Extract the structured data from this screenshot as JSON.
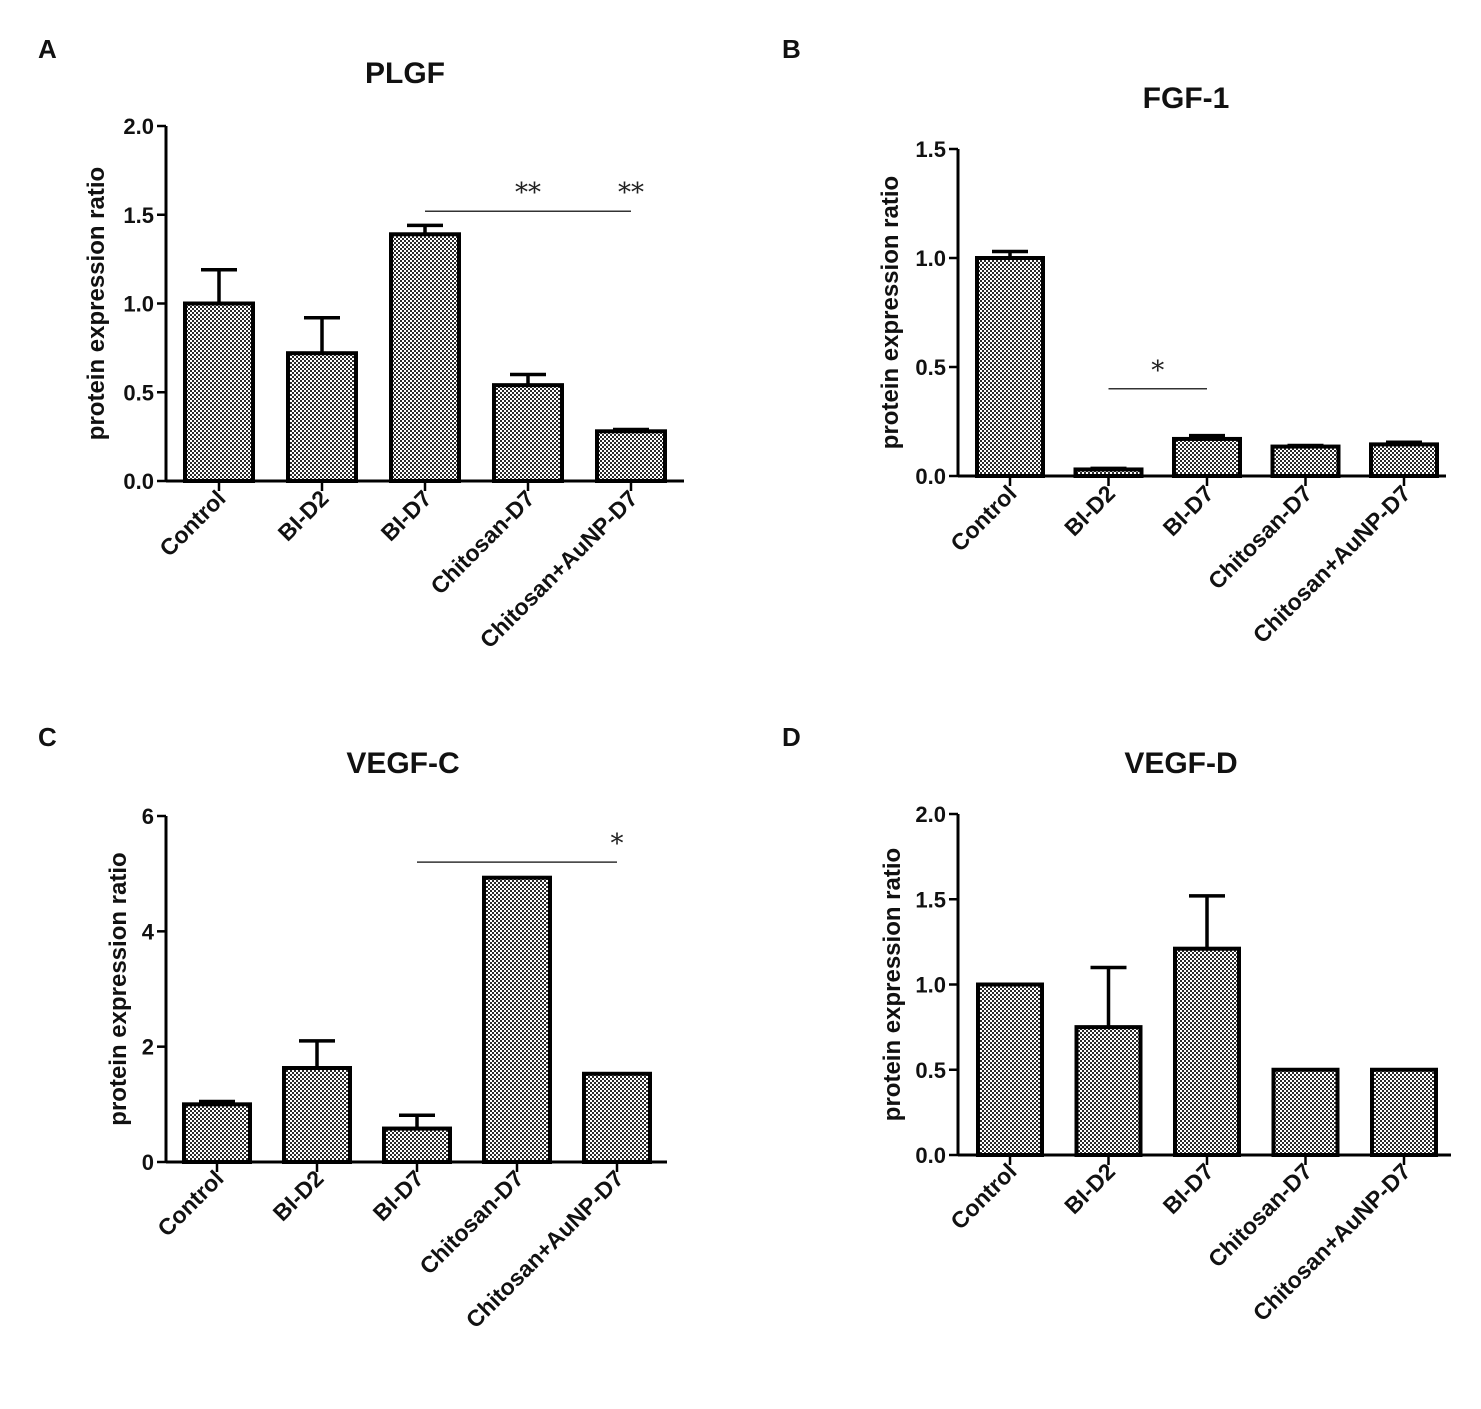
{
  "figure": {
    "panels": [
      "A",
      "B",
      "C",
      "D"
    ]
  },
  "chart_data": [
    {
      "panel": "A",
      "type": "bar",
      "title": "PLGF",
      "xlabel": "",
      "ylabel": "protein expression ratio",
      "ylim": [
        0,
        2.0
      ],
      "yticks": [
        "0.0",
        "0.5",
        "1.0",
        "1.5",
        "2.0"
      ],
      "categories": [
        "Control",
        "BI-D2",
        "BI-D7",
        "Chitosan-D7",
        "Chitosan+AuNP-D7"
      ],
      "values": [
        1.0,
        0.72,
        1.39,
        0.54,
        0.28
      ],
      "errors": [
        0.19,
        0.2,
        0.05,
        0.06,
        0.01
      ],
      "significance": [
        {
          "label": "**",
          "from": 2,
          "to": 4,
          "line_y": 1.52,
          "label_at": 3
        },
        {
          "label": "**",
          "from": 2,
          "to": 4,
          "line_y": 1.52,
          "label_at": 4
        }
      ]
    },
    {
      "panel": "B",
      "type": "bar",
      "title": "FGF-1",
      "xlabel": "",
      "ylabel": "protein expression ratio",
      "ylim": [
        0,
        1.5
      ],
      "yticks": [
        "0.0",
        "0.5",
        "1.0",
        "1.5"
      ],
      "categories": [
        "Control",
        "BI-D2",
        "BI-D7",
        "Chitosan-D7",
        "Chitosan+AuNP-D7"
      ],
      "values": [
        1.0,
        0.03,
        0.17,
        0.135,
        0.145
      ],
      "errors": [
        0.03,
        0.005,
        0.015,
        0.005,
        0.01
      ],
      "significance": [
        {
          "label": "*",
          "from": 1,
          "to": 2,
          "line_y": 0.4,
          "label_at": 1.5
        }
      ]
    },
    {
      "panel": "C",
      "type": "bar",
      "title": "VEGF-C",
      "xlabel": "",
      "ylabel": "protein expression ratio",
      "ylim": [
        0,
        6
      ],
      "yticks": [
        "0",
        "2",
        "4",
        "6"
      ],
      "categories": [
        "Control",
        "BI-D2",
        "BI-D7",
        "Chitosan-D7",
        "Chitosan+AuNP-D7"
      ],
      "values": [
        1.0,
        1.63,
        0.58,
        4.93,
        1.53
      ],
      "errors": [
        0.05,
        0.47,
        0.23,
        0,
        0
      ],
      "significance": [
        {
          "label": "*",
          "from": 2,
          "to": 4,
          "line_y": 5.2,
          "label_at": 4
        }
      ]
    },
    {
      "panel": "D",
      "type": "bar",
      "title": "VEGF-D",
      "xlabel": "",
      "ylabel": "protein expression ratio",
      "ylim": [
        0,
        2.0
      ],
      "yticks": [
        "0.0",
        "0.5",
        "1.0",
        "1.5",
        "2.0"
      ],
      "categories": [
        "Control",
        "BI-D2",
        "BI-D7",
        "Chitosan-D7",
        "Chitosan+AuNP-D7"
      ],
      "values": [
        1.0,
        0.75,
        1.21,
        0.5,
        0.5
      ],
      "errors": [
        0,
        0.35,
        0.31,
        0,
        0
      ],
      "significance": []
    }
  ]
}
